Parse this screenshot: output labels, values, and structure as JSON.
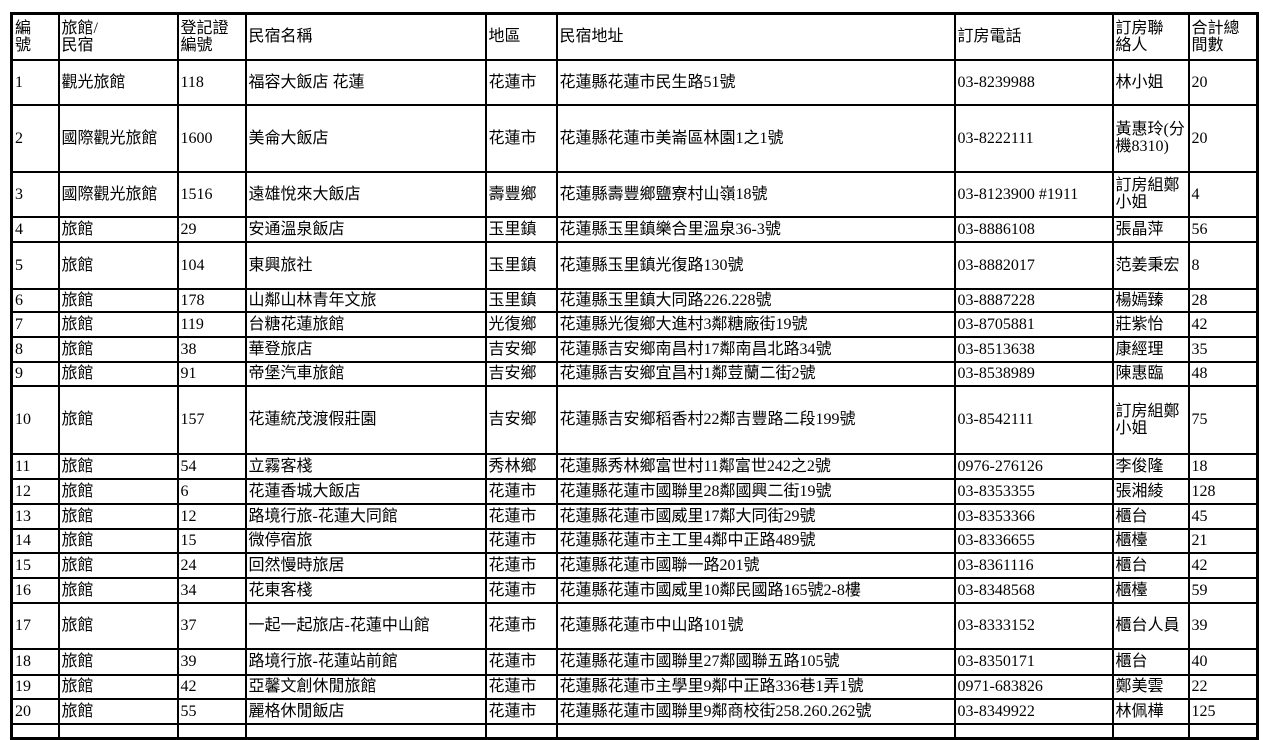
{
  "table": {
    "headers": [
      "編號",
      "旅館/民宿",
      "登記證編號",
      "民宿名稱",
      "地區",
      "民宿地址",
      "訂房電話",
      "訂房聯絡人",
      "合計總間數"
    ],
    "header_lines": [
      [
        "編",
        "號"
      ],
      [
        "旅館",
        "/民宿"
      ],
      [
        "登記證",
        "編號"
      ],
      [
        "民宿名稱"
      ],
      [
        "地區"
      ],
      [
        "民宿地址"
      ],
      [
        "訂房電話"
      ],
      [
        "訂房",
        "聯絡人"
      ],
      [
        "合計",
        "總間數"
      ]
    ],
    "rows": [
      [
        "1",
        "觀光旅館",
        "118",
        "福容大飯店 花蓮",
        "花蓮市",
        "花蓮縣花蓮市民生路51號",
        "03-8239988",
        "林小姐",
        "20"
      ],
      [
        "2",
        "國際觀光旅館",
        "1600",
        "美侖大飯店",
        "花蓮市",
        "花蓮縣花蓮市美崙區林園1之1號",
        "03-8222111",
        "黃惠玲(分機8310)",
        "20"
      ],
      [
        "3",
        "國際觀光旅館",
        "1516",
        "遠雄悅來大飯店",
        "壽豐鄉",
        "花蓮縣壽豐鄉鹽寮村山嶺18號",
        "03-8123900 #1911",
        "訂房組鄭小姐",
        "4"
      ],
      [
        "4",
        "旅館",
        "29",
        "安通溫泉飯店",
        "玉里鎮",
        "花蓮縣玉里鎮樂合里溫泉36-3號",
        "03-8886108",
        "張晶萍",
        "56"
      ],
      [
        "5",
        "旅館",
        "104",
        "東興旅社",
        "玉里鎮",
        "花蓮縣玉里鎮光復路130號",
        "03-8882017",
        "范姜秉宏",
        "8"
      ],
      [
        "6",
        "旅館",
        "178",
        "山鄰山林青年文旅",
        "玉里鎮",
        "花蓮縣玉里鎮大同路226.228號",
        "03-8887228",
        "楊嫣臻",
        "28"
      ],
      [
        "7",
        "旅館",
        "119",
        "台糖花蓮旅館",
        "光復鄉",
        "花蓮縣光復鄉大進村3鄰糖廠街19號",
        "03-8705881",
        "莊紫怡",
        "42"
      ],
      [
        "8",
        "旅館",
        "38",
        "華登旅店",
        "吉安鄉",
        "花蓮縣吉安鄉南昌村17鄰南昌北路34號",
        "03-8513638",
        "康經理",
        "35"
      ],
      [
        "9",
        "旅館",
        "91",
        "帝堡汽車旅館",
        "吉安鄉",
        "花蓮縣吉安鄉宜昌村1鄰荳蘭二街2號",
        "03-8538989",
        "陳惠臨",
        "48"
      ],
      [
        "10",
        "旅館",
        "157",
        "花蓮統茂渡假莊園",
        "吉安鄉",
        "花蓮縣吉安鄉稻香村22鄰吉豐路二段199號",
        "03-8542111",
        "訂房組鄭小姐",
        "75"
      ],
      [
        "11",
        "旅館",
        "54",
        "立霧客棧",
        "秀林鄉",
        "花蓮縣秀林鄉富世村11鄰富世242之2號",
        "0976-276126",
        "李俊隆",
        "18"
      ],
      [
        "12",
        "旅館",
        "6",
        "花蓮香城大飯店",
        "花蓮市",
        "花蓮縣花蓮市國聯里28鄰國興二街19號",
        "03-8353355",
        "張湘綾",
        "128"
      ],
      [
        "13",
        "旅館",
        "12",
        "路境行旅-花蓮大同館",
        "花蓮市",
        "花蓮縣花蓮市國威里17鄰大同街29號",
        "03-8353366",
        "櫃台",
        "45"
      ],
      [
        "14",
        "旅館",
        "15",
        "微停宿旅",
        "花蓮市",
        "花蓮縣花蓮市主工里4鄰中正路489號",
        "03-8336655",
        "櫃檯",
        "21"
      ],
      [
        "15",
        "旅館",
        "24",
        "回然慢時旅居",
        "花蓮市",
        "花蓮縣花蓮市國聯一路201號",
        "03-8361116",
        "櫃台",
        "42"
      ],
      [
        "16",
        "旅館",
        "34",
        "花東客棧",
        "花蓮市",
        "花蓮縣花蓮市國威里10鄰民國路165號2-8樓",
        "03-8348568",
        "櫃檯",
        "59"
      ],
      [
        "17",
        "旅館",
        "37",
        "一起一起旅店-花蓮中山館",
        "花蓮市",
        "花蓮縣花蓮市中山路101號",
        "03-8333152",
        "櫃台人員",
        "39"
      ],
      [
        "18",
        "旅館",
        "39",
        "路境行旅-花蓮站前館",
        "花蓮市",
        "花蓮縣花蓮市國聯里27鄰國聯五路105號",
        "03-8350171",
        "櫃台",
        "40"
      ],
      [
        "19",
        "旅館",
        "42",
        "亞馨文創休閒旅館",
        "花蓮市",
        "花蓮縣花蓮市主學里9鄰中正路336巷1弄1號",
        "0971-683826",
        "鄭美雲",
        "22"
      ],
      [
        "20",
        "旅館",
        "55",
        "麗格休閒飯店",
        "花蓮市",
        "花蓮縣花蓮市國聯里9鄰商校街258.260.262號",
        "03-8349922",
        "林佩樺",
        "125"
      ]
    ]
  }
}
